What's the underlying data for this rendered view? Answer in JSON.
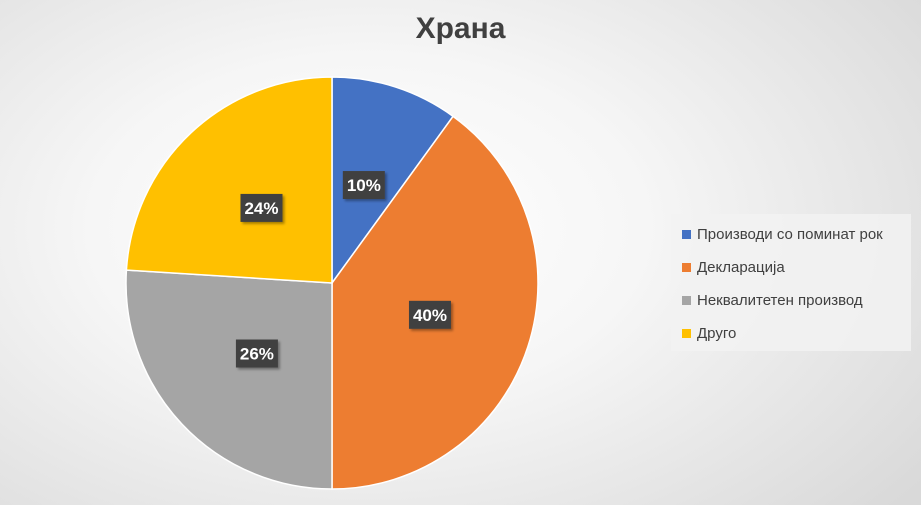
{
  "chart_data": {
    "type": "pie",
    "title": "Храна",
    "categories": [
      "Производи со поминат рок",
      "Декларација",
      "Неквалитетен производ",
      "Друго"
    ],
    "values": [
      10,
      40,
      26,
      24
    ],
    "data_labels": [
      "10%",
      "40%",
      "26%",
      "24%"
    ],
    "colors": [
      "#4472C4",
      "#ED7D31",
      "#A5A5A5",
      "#FFC000"
    ],
    "legend_position": "right"
  }
}
